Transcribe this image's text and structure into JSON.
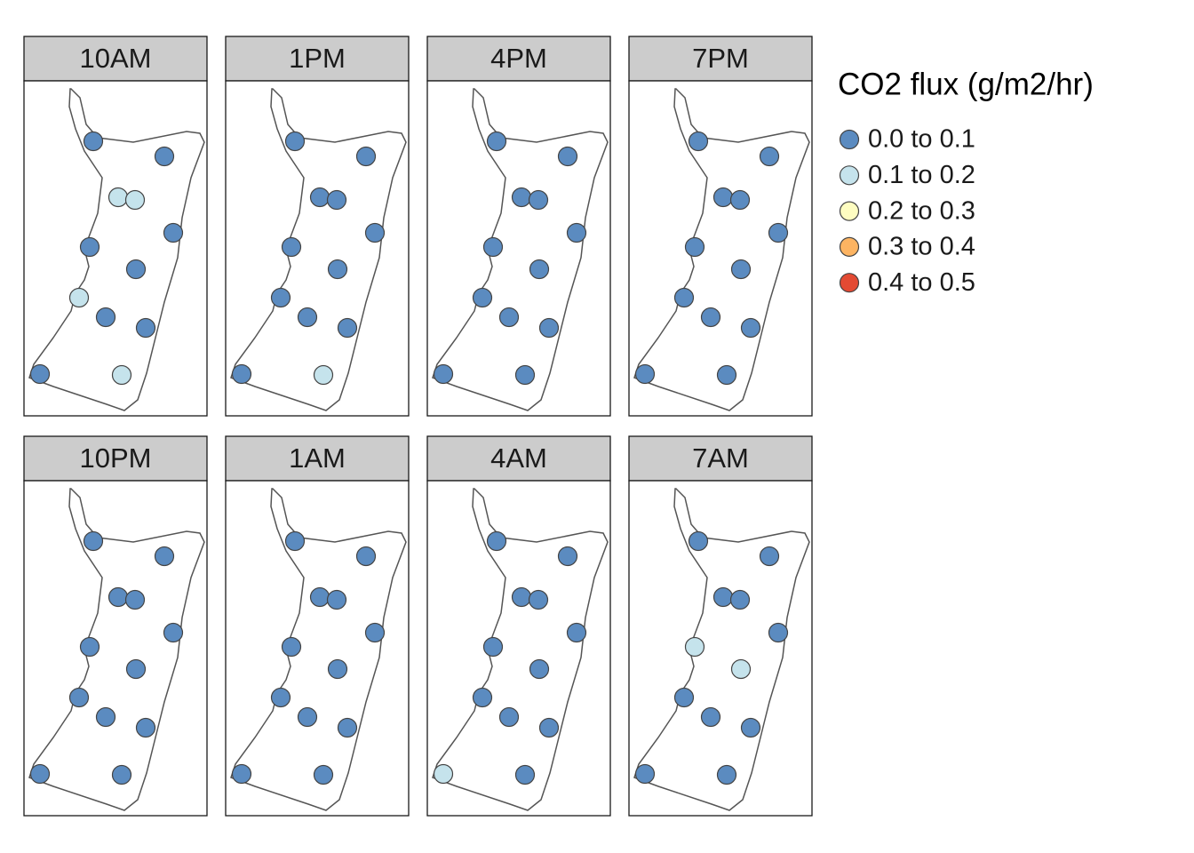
{
  "panels": [
    {
      "title": "10AM",
      "points": [
        0,
        0,
        1,
        1,
        0,
        0,
        0,
        1,
        0,
        0,
        0,
        1
      ]
    },
    {
      "title": "1PM",
      "points": [
        0,
        0,
        0,
        0,
        0,
        0,
        0,
        0,
        0,
        0,
        0,
        1
      ]
    },
    {
      "title": "4PM",
      "points": [
        0,
        0,
        0,
        0,
        0,
        0,
        0,
        0,
        0,
        0,
        0,
        0
      ]
    },
    {
      "title": "7PM",
      "points": [
        0,
        0,
        0,
        0,
        0,
        0,
        0,
        0,
        0,
        0,
        0,
        0
      ]
    },
    {
      "title": "10PM",
      "points": [
        0,
        0,
        0,
        0,
        0,
        0,
        0,
        0,
        0,
        0,
        0,
        0
      ]
    },
    {
      "title": "1AM",
      "points": [
        0,
        0,
        0,
        0,
        0,
        0,
        0,
        0,
        0,
        0,
        0,
        0
      ]
    },
    {
      "title": "4AM",
      "points": [
        0,
        0,
        0,
        0,
        0,
        0,
        0,
        0,
        0,
        0,
        1,
        0
      ]
    },
    {
      "title": "7AM",
      "points": [
        0,
        0,
        0,
        0,
        0,
        1,
        1,
        0,
        0,
        0,
        0,
        0
      ]
    }
  ],
  "legend": {
    "title": "CO2 flux (g/m2/hr)",
    "items": [
      {
        "label": "0.0 to 0.1",
        "color": "#5b8bc0"
      },
      {
        "label": "0.1 to 0.2",
        "color": "#c5e3ec"
      },
      {
        "label": "0.2 to 0.3",
        "color": "#fefdc1"
      },
      {
        "label": "0.3 to 0.4",
        "color": "#fdb462"
      },
      {
        "label": "0.4 to 0.5",
        "color": "#e34a33"
      }
    ]
  }
}
